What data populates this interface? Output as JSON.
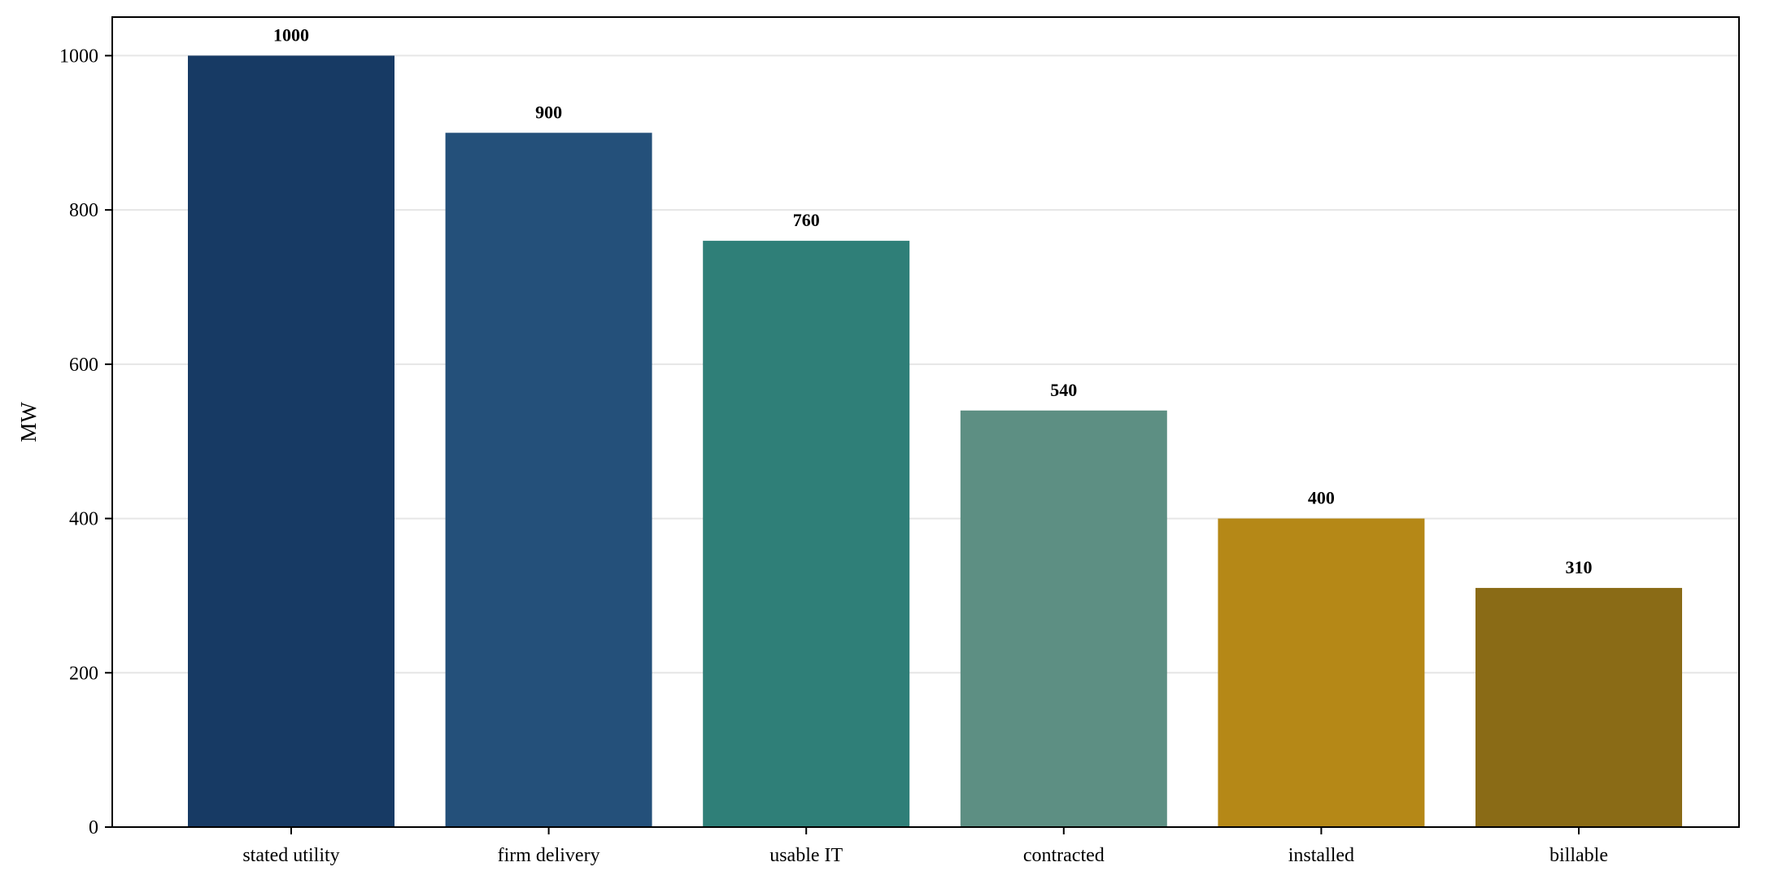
{
  "chart_data": {
    "type": "bar",
    "categories": [
      "stated utility",
      "firm delivery",
      "usable IT",
      "contracted",
      "installed",
      "billable"
    ],
    "values": [
      1000,
      900,
      760,
      540,
      400,
      310
    ],
    "value_labels": [
      "1000",
      "900",
      "760",
      "540",
      "400",
      "310"
    ],
    "colors": [
      "#173a64",
      "#24507a",
      "#2f7f78",
      "#5d8f83",
      "#b58817",
      "#8a6b16"
    ],
    "title": "",
    "xlabel": "",
    "ylabel": "MW",
    "ylim": [
      0,
      1050
    ],
    "yticks": [
      0,
      200,
      400,
      600,
      800,
      1000
    ],
    "ytick_labels": [
      "0",
      "200",
      "400",
      "600",
      "800",
      "1000"
    ],
    "grid": "horizontal",
    "legend": "none"
  }
}
